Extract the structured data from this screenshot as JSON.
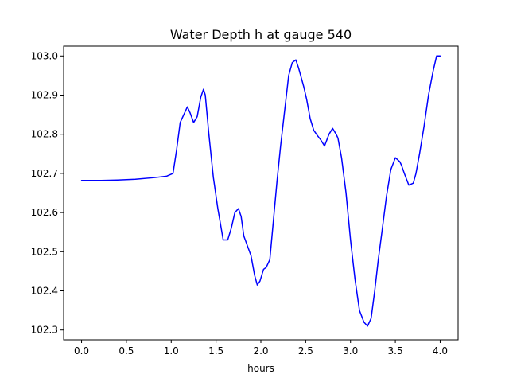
{
  "chart_data": {
    "type": "line",
    "title": "Water Depth h at gauge 540",
    "xlabel": "hours",
    "ylabel": "",
    "xlim": [
      -0.2,
      4.2
    ],
    "ylim": [
      102.275,
      103.025
    ],
    "x_ticks": [
      0.0,
      0.5,
      1.0,
      1.5,
      2.0,
      2.5,
      3.0,
      3.5,
      4.0
    ],
    "x_tick_labels": [
      "0.0",
      "0.5",
      "1.0",
      "1.5",
      "2.0",
      "2.5",
      "3.0",
      "3.5",
      "4.0"
    ],
    "y_ticks": [
      102.3,
      102.4,
      102.5,
      102.6,
      102.7,
      102.8,
      102.9,
      103.0
    ],
    "y_tick_labels": [
      "102.3",
      "102.4",
      "102.5",
      "102.6",
      "102.7",
      "102.8",
      "102.9",
      "103.0"
    ],
    "grid": false,
    "series": [
      {
        "color": "#0000ff",
        "x": [
          0.0,
          0.2,
          0.4,
          0.6,
          0.8,
          0.95,
          1.02,
          1.06,
          1.1,
          1.15,
          1.18,
          1.21,
          1.25,
          1.29,
          1.33,
          1.36,
          1.38,
          1.42,
          1.47,
          1.52,
          1.58,
          1.63,
          1.67,
          1.71,
          1.75,
          1.78,
          1.81,
          1.85,
          1.89,
          1.93,
          1.96,
          1.99,
          2.03,
          2.06,
          2.1,
          2.14,
          2.18,
          2.22,
          2.27,
          2.31,
          2.35,
          2.39,
          2.42,
          2.45,
          2.48,
          2.51,
          2.55,
          2.59,
          2.63,
          2.67,
          2.71,
          2.76,
          2.8,
          2.84,
          2.86,
          2.9,
          2.95,
          3.0,
          3.05,
          3.1,
          3.15,
          3.19,
          3.23,
          3.27,
          3.31,
          3.35,
          3.4,
          3.45,
          3.5,
          3.55,
          3.57,
          3.6,
          3.65,
          3.7,
          3.73,
          3.77,
          3.82,
          3.87,
          3.92,
          3.96,
          4.0
        ],
        "y": [
          102.682,
          102.682,
          102.683,
          102.685,
          102.689,
          102.693,
          102.7,
          102.76,
          102.83,
          102.855,
          102.87,
          102.855,
          102.83,
          102.845,
          102.895,
          102.915,
          102.9,
          102.8,
          102.69,
          102.61,
          102.53,
          102.53,
          102.56,
          102.6,
          102.61,
          102.59,
          102.54,
          102.515,
          102.49,
          102.44,
          102.415,
          102.425,
          102.455,
          102.46,
          102.48,
          102.58,
          102.68,
          102.77,
          102.87,
          102.95,
          102.983,
          102.99,
          102.97,
          102.945,
          102.92,
          102.89,
          102.84,
          102.81,
          102.797,
          102.785,
          102.77,
          102.8,
          102.815,
          102.8,
          102.79,
          102.74,
          102.65,
          102.53,
          102.43,
          102.35,
          102.32,
          102.31,
          102.33,
          102.4,
          102.48,
          102.55,
          102.64,
          102.71,
          102.74,
          102.73,
          102.72,
          102.7,
          102.67,
          102.675,
          102.7,
          102.75,
          102.82,
          102.9,
          102.96,
          103.0,
          103.0
        ]
      }
    ]
  }
}
